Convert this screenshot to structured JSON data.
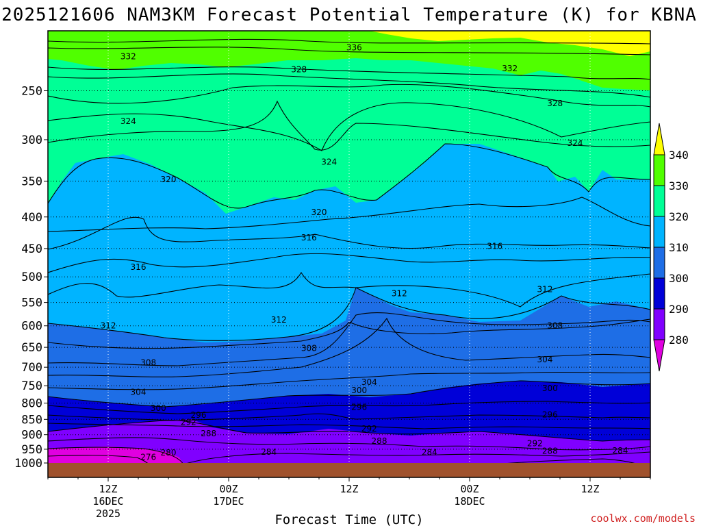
{
  "chart_data": {
    "type": "heatmap",
    "title": "2025121606 NAM3KM Forecast Potential Temperature (K) for KBNA",
    "xlabel": "Forecast Time (UTC)",
    "ylabel": "",
    "credit": "coolwx.com/models",
    "y_scale": "log",
    "y_ticks": [
      250,
      300,
      350,
      400,
      450,
      500,
      550,
      600,
      650,
      700,
      750,
      800,
      850,
      900,
      950,
      1000
    ],
    "y_range": [
      1000,
      200
    ],
    "x_ticks": [
      {
        "line1": "12Z",
        "line2": "16DEC",
        "line3": "2025"
      },
      {
        "line1": "00Z",
        "line2": "17DEC",
        "line3": ""
      },
      {
        "line1": "12Z",
        "line2": "",
        "line3": ""
      },
      {
        "line1": "00Z",
        "line2": "18DEC",
        "line3": ""
      },
      {
        "line1": "12Z",
        "line2": "",
        "line3": ""
      }
    ],
    "x_range_hours": [
      0,
      60
    ],
    "colorbar": {
      "ticks": [
        340,
        330,
        320,
        310,
        300,
        290,
        280
      ],
      "colors": {
        "lt280": "#e000e0",
        "280": "#8000ff",
        "290": "#0000d8",
        "300": "#1e6ee6",
        "310": "#00b4ff",
        "320": "#00ff96",
        "330": "#50ff00",
        "340": "#ffff00"
      }
    },
    "contour_labels": [
      {
        "value": "336",
        "time": 30.5,
        "pres": 213
      },
      {
        "value": "332",
        "time": 8,
        "pres": 220
      },
      {
        "value": "332",
        "time": 46,
        "pres": 230
      },
      {
        "value": "328",
        "time": 25,
        "pres": 231
      },
      {
        "value": "328",
        "time": 50.5,
        "pres": 262
      },
      {
        "value": "324",
        "time": 8,
        "pres": 280
      },
      {
        "value": "324",
        "time": 28,
        "pres": 326
      },
      {
        "value": "324",
        "time": 52.5,
        "pres": 304
      },
      {
        "value": "320",
        "time": 12,
        "pres": 348
      },
      {
        "value": "320",
        "time": 27,
        "pres": 393
      },
      {
        "value": "316",
        "time": 26,
        "pres": 432
      },
      {
        "value": "316",
        "time": 9,
        "pres": 482
      },
      {
        "value": "316",
        "time": 44.5,
        "pres": 446
      },
      {
        "value": "312",
        "time": 6,
        "pres": 600
      },
      {
        "value": "312",
        "time": 23,
        "pres": 587
      },
      {
        "value": "312",
        "time": 35,
        "pres": 532
      },
      {
        "value": "312",
        "time": 49.5,
        "pres": 524
      },
      {
        "value": "308",
        "time": 10,
        "pres": 688
      },
      {
        "value": "308",
        "time": 26,
        "pres": 652
      },
      {
        "value": "308",
        "time": 50.5,
        "pres": 600
      },
      {
        "value": "304",
        "time": 9,
        "pres": 768
      },
      {
        "value": "304",
        "time": 32,
        "pres": 740
      },
      {
        "value": "304",
        "time": 49.5,
        "pres": 680
      },
      {
        "value": "300",
        "time": 11,
        "pres": 815
      },
      {
        "value": "300",
        "time": 31,
        "pres": 763
      },
      {
        "value": "300",
        "time": 50,
        "pres": 757
      },
      {
        "value": "296",
        "time": 15,
        "pres": 836
      },
      {
        "value": "296",
        "time": 31,
        "pres": 812
      },
      {
        "value": "296",
        "time": 50,
        "pres": 835
      },
      {
        "value": "292",
        "time": 14,
        "pres": 859
      },
      {
        "value": "292",
        "time": 32,
        "pres": 880
      },
      {
        "value": "292",
        "time": 48.5,
        "pres": 930
      },
      {
        "value": "288",
        "time": 16,
        "pres": 896
      },
      {
        "value": "288",
        "time": 33,
        "pres": 922
      },
      {
        "value": "288",
        "time": 50,
        "pres": 956
      },
      {
        "value": "284",
        "time": 22,
        "pres": 960
      },
      {
        "value": "284",
        "time": 38,
        "pres": 961
      },
      {
        "value": "284",
        "time": 57,
        "pres": 955
      },
      {
        "value": "280",
        "time": 12,
        "pres": 962
      },
      {
        "value": "276",
        "time": 10,
        "pres": 979
      }
    ]
  }
}
